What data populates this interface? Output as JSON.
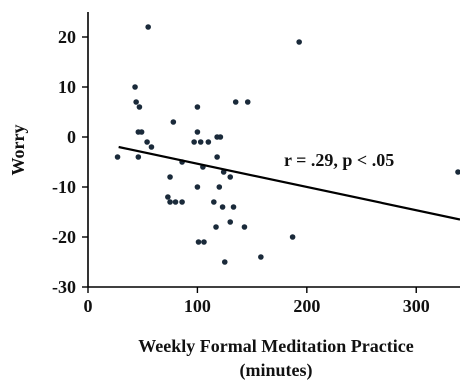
{
  "chart_data": {
    "type": "scatter",
    "xlabel_line1": "Weekly Formal Meditation Practice",
    "xlabel_line2": "(minutes)",
    "ylabel": "Worry",
    "xlim": [
      0,
      340
    ],
    "ylim": [
      -30,
      25
    ],
    "x_ticks": [
      0,
      100,
      200,
      300
    ],
    "y_ticks": [
      -30,
      -20,
      -10,
      0,
      10,
      20
    ],
    "annotation": "r = .29, p < .05",
    "colors": {
      "points": "#1a2a3a",
      "line": "#000000",
      "axis": "#000000"
    },
    "regression": {
      "x": [
        28,
        340
      ],
      "y": [
        -2,
        -16.5
      ]
    },
    "points": [
      {
        "x": 55,
        "y": 22
      },
      {
        "x": 193,
        "y": 19
      },
      {
        "x": 43,
        "y": 10
      },
      {
        "x": 44,
        "y": 7
      },
      {
        "x": 47,
        "y": 6
      },
      {
        "x": 46,
        "y": 1
      },
      {
        "x": 49,
        "y": 1
      },
      {
        "x": 100,
        "y": 6
      },
      {
        "x": 135,
        "y": 7
      },
      {
        "x": 146,
        "y": 7
      },
      {
        "x": 78,
        "y": 3
      },
      {
        "x": 100,
        "y": 1
      },
      {
        "x": 118,
        "y": 0
      },
      {
        "x": 121,
        "y": 0
      },
      {
        "x": 54,
        "y": -1
      },
      {
        "x": 58,
        "y": -2
      },
      {
        "x": 97,
        "y": -1
      },
      {
        "x": 103,
        "y": -1
      },
      {
        "x": 110,
        "y": -1
      },
      {
        "x": 27,
        "y": -4
      },
      {
        "x": 46,
        "y": -4
      },
      {
        "x": 118,
        "y": -4
      },
      {
        "x": 86,
        "y": -5
      },
      {
        "x": 105,
        "y": -6
      },
      {
        "x": 124,
        "y": -7
      },
      {
        "x": 130,
        "y": -8
      },
      {
        "x": 75,
        "y": -8
      },
      {
        "x": 100,
        "y": -10
      },
      {
        "x": 120,
        "y": -10
      },
      {
        "x": 73,
        "y": -12
      },
      {
        "x": 75,
        "y": -13
      },
      {
        "x": 80,
        "y": -13
      },
      {
        "x": 86,
        "y": -13
      },
      {
        "x": 115,
        "y": -13
      },
      {
        "x": 123,
        "y": -14
      },
      {
        "x": 133,
        "y": -14
      },
      {
        "x": 130,
        "y": -17
      },
      {
        "x": 117,
        "y": -18
      },
      {
        "x": 143,
        "y": -18
      },
      {
        "x": 187,
        "y": -20
      },
      {
        "x": 101,
        "y": -21
      },
      {
        "x": 106,
        "y": -21
      },
      {
        "x": 158,
        "y": -24
      },
      {
        "x": 125,
        "y": -25
      },
      {
        "x": 345,
        "y": -7
      }
    ]
  }
}
